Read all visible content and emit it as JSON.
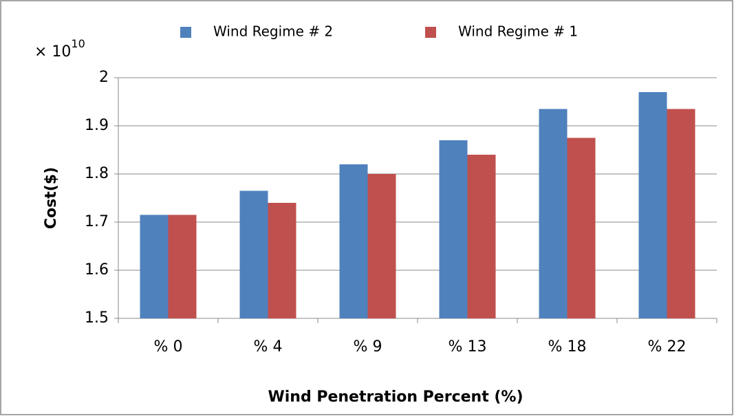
{
  "chart_data": {
    "type": "bar",
    "y_label": "Cost($)",
    "x_label": "Wind Penetration Percent (%)",
    "y_multiplier": {
      "base": "× 10",
      "exponent": "10"
    },
    "categories": [
      "% 0",
      "% 4",
      "% 9",
      "% 13",
      "% 18",
      "% 22"
    ],
    "series": [
      {
        "name": "Wind Regime # 2",
        "color": "#4f81bd",
        "values": [
          1.715,
          1.765,
          1.82,
          1.87,
          1.935,
          1.97
        ]
      },
      {
        "name": "Wind Regime # 1",
        "color": "#c0504d",
        "values": [
          1.715,
          1.74,
          1.8,
          1.84,
          1.875,
          1.935
        ]
      }
    ],
    "ylim": [
      1.5,
      2
    ],
    "yticks": [
      1.5,
      1.6,
      1.7,
      1.8,
      1.9,
      2
    ],
    "grid": true,
    "legend": "top"
  }
}
